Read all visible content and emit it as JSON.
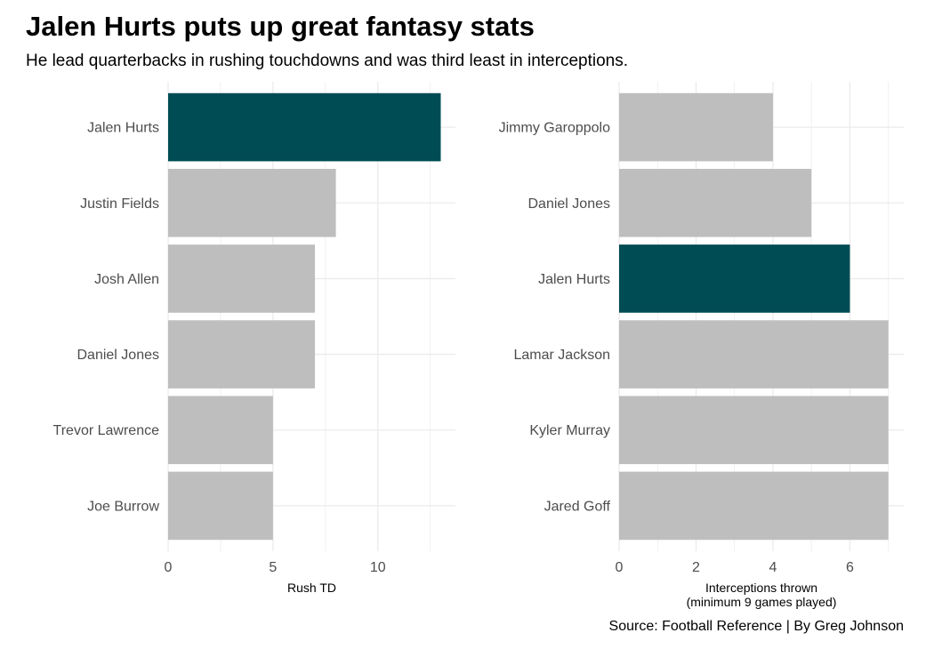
{
  "title": "Jalen Hurts puts up great fantasy stats",
  "subtitle": "He lead quarterbacks in rushing touchdowns and was third least in interceptions.",
  "caption": "Source: Football Reference | By Greg Johnson",
  "colors": {
    "highlight": "#004c54",
    "other": "#bebebe",
    "grid": "#ebebeb"
  },
  "chart_data": [
    {
      "type": "bar",
      "orientation": "horizontal",
      "categories": [
        "Jalen Hurts",
        "Justin Fields",
        "Josh Allen",
        "Daniel Jones",
        "Trevor Lawrence",
        "Joe Burrow"
      ],
      "values": [
        13,
        8,
        7,
        7,
        5,
        5
      ],
      "highlight": "Jalen Hurts",
      "xlabel": "Rush TD",
      "xlim": [
        0,
        13.7
      ],
      "xticks": [
        0,
        5,
        10
      ],
      "grid": true
    },
    {
      "type": "bar",
      "orientation": "horizontal",
      "categories": [
        "Jimmy Garoppolo",
        "Daniel Jones",
        "Jalen Hurts",
        "Lamar Jackson",
        "Kyler Murray",
        "Jared Goff"
      ],
      "values": [
        4,
        5,
        6,
        7,
        7,
        7
      ],
      "highlight": "Jalen Hurts",
      "xlabel": [
        "Interceptions thrown",
        "(minimum 9 games played)"
      ],
      "xlim": [
        0,
        7.4
      ],
      "xticks": [
        0,
        2,
        4,
        6
      ],
      "grid": true
    }
  ]
}
